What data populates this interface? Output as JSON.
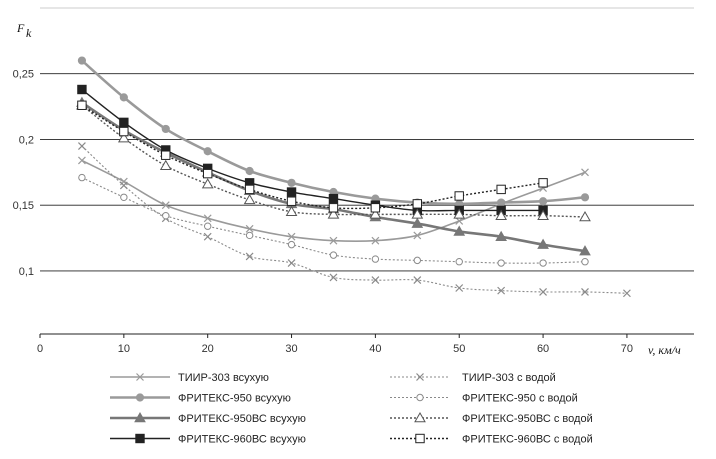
{
  "chart_data": {
    "type": "line",
    "ylabel": "F_k",
    "xlabel": "v, км/ч",
    "x_ticks": [
      "0",
      "10",
      "20",
      "30",
      "40",
      "50",
      "60",
      "70"
    ],
    "y_ticks": [
      "0,1",
      "0,15",
      "0,2",
      "0,25"
    ],
    "xlim": [
      0,
      78
    ],
    "ylim": [
      0.052,
      0.3
    ],
    "grid": "horizontal",
    "legend_position": "bottom",
    "series": [
      {
        "name": "ТИИР-303 всухую",
        "marker": "x",
        "color": "#9a9a9a",
        "width": 1.6,
        "dash": "",
        "x": [
          5,
          10,
          15,
          20,
          25,
          30,
          35,
          40,
          45,
          50,
          55,
          60,
          65
        ],
        "y": [
          0.184,
          0.168,
          0.15,
          0.14,
          0.132,
          0.126,
          0.123,
          0.123,
          0.127,
          0.138,
          0.151,
          0.163,
          0.175
        ]
      },
      {
        "name": "ФРИТЕКС-950 всухую",
        "marker": "circle-filled",
        "color": "#9a9a9a",
        "width": 2.6,
        "dash": "",
        "x": [
          5,
          10,
          15,
          20,
          25,
          30,
          35,
          40,
          45,
          50,
          55,
          60,
          65
        ],
        "y": [
          0.26,
          0.232,
          0.208,
          0.191,
          0.176,
          0.167,
          0.16,
          0.155,
          0.152,
          0.151,
          0.152,
          0.153,
          0.156
        ]
      },
      {
        "name": "ФРИТЕКС-950ВС всухую",
        "marker": "triangle-filled",
        "color": "#777777",
        "width": 2.6,
        "dash": "",
        "x": [
          5,
          10,
          15,
          20,
          25,
          30,
          35,
          40,
          45,
          50,
          55,
          60,
          65
        ],
        "y": [
          0.228,
          0.207,
          0.19,
          0.175,
          0.161,
          0.151,
          0.147,
          0.141,
          0.136,
          0.13,
          0.126,
          0.12,
          0.115
        ]
      },
      {
        "name": "ФРИТЕКС-960ВС всухую",
        "marker": "square-filled",
        "color": "#222222",
        "width": 1.4,
        "dash": "",
        "x": [
          5,
          10,
          15,
          20,
          25,
          30,
          35,
          40,
          45,
          50,
          55,
          60
        ],
        "y": [
          0.238,
          0.213,
          0.192,
          0.178,
          0.167,
          0.16,
          0.155,
          0.15,
          0.146,
          0.146,
          0.146,
          0.146
        ]
      },
      {
        "name": "ТИИР-303 с водой",
        "marker": "x",
        "color": "#8a8a8a",
        "width": 1.1,
        "dash": "2,2",
        "x": [
          5,
          10,
          15,
          20,
          25,
          30,
          35,
          40,
          45,
          50,
          55,
          60,
          65,
          70
        ],
        "y": [
          0.195,
          0.165,
          0.14,
          0.126,
          0.111,
          0.106,
          0.095,
          0.093,
          0.093,
          0.087,
          0.085,
          0.084,
          0.084,
          0.083
        ]
      },
      {
        "name": "ФРИТЕКС-950 с водой",
        "marker": "circle-open",
        "color": "#8a8a8a",
        "width": 1.1,
        "dash": "2,2",
        "x": [
          5,
          10,
          15,
          20,
          25,
          30,
          35,
          40,
          45,
          50,
          55,
          60,
          65
        ],
        "y": [
          0.171,
          0.156,
          0.142,
          0.134,
          0.127,
          0.12,
          0.112,
          0.109,
          0.108,
          0.107,
          0.106,
          0.106,
          0.107
        ]
      },
      {
        "name": "ФРИТЕКС-950ВС с водой",
        "marker": "triangle-open",
        "color": "#555555",
        "width": 1.4,
        "dash": "2,2",
        "x": [
          5,
          10,
          15,
          20,
          25,
          30,
          35,
          40,
          45,
          50,
          55,
          60,
          65
        ],
        "y": [
          0.226,
          0.201,
          0.18,
          0.166,
          0.154,
          0.145,
          0.143,
          0.143,
          0.143,
          0.143,
          0.142,
          0.142,
          0.141
        ]
      },
      {
        "name": "ФРИТЕКС-960ВС с водой",
        "marker": "square-open",
        "color": "#222222",
        "width": 1.4,
        "dash": "2,2",
        "x": [
          5,
          10,
          15,
          20,
          25,
          30,
          35,
          40,
          45,
          50,
          55,
          60
        ],
        "y": [
          0.226,
          0.206,
          0.188,
          0.174,
          0.162,
          0.153,
          0.148,
          0.148,
          0.151,
          0.157,
          0.162,
          0.167
        ]
      }
    ]
  }
}
